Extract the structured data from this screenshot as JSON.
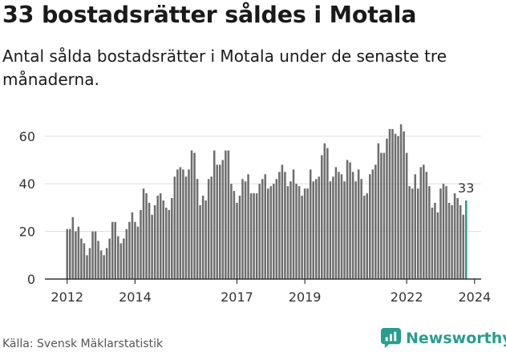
{
  "title": "33 bostadsrätter såldes i Motala",
  "subtitle": "Antal sålda bostadsrätter i Motala under de senaste tre månaderna.",
  "source": "Källa: Svensk Mäklarstatistik",
  "brand": "Newsworthy",
  "colors": {
    "bar": "#6e6e6e",
    "highlight": "#2a9d8f",
    "axis": "#333333",
    "text": "#333333"
  },
  "chart_data": {
    "type": "bar",
    "title": "33 bostadsrätter såldes i Motala",
    "xlabel": "",
    "ylabel": "",
    "ylim": [
      0,
      66
    ],
    "yticks": [
      0,
      20,
      40,
      60
    ],
    "xticks": [
      {
        "label": "2012",
        "index": 0
      },
      {
        "label": "2014",
        "index": 24
      },
      {
        "label": "2017",
        "index": 60
      },
      {
        "label": "2019",
        "index": 84
      },
      {
        "label": "2022",
        "index": 120
      },
      {
        "label": "2024",
        "index": 144
      }
    ],
    "start": "2012-01",
    "highlight_label": "33",
    "values": [
      21,
      21,
      26,
      20,
      22,
      17,
      15,
      10,
      13,
      20,
      20,
      16,
      12,
      10,
      13,
      17,
      24,
      24,
      18,
      15,
      17,
      21,
      24,
      28,
      24,
      22,
      29,
      38,
      36,
      32,
      27,
      31,
      35,
      36,
      33,
      30,
      29,
      34,
      43,
      46,
      47,
      46,
      43,
      46,
      54,
      53,
      42,
      31,
      35,
      33,
      42,
      43,
      54,
      48,
      48,
      50,
      54,
      54,
      40,
      37,
      32,
      35,
      42,
      41,
      44,
      36,
      36,
      36,
      40,
      42,
      44,
      38,
      39,
      40,
      42,
      45,
      48,
      45,
      39,
      41,
      46,
      40,
      39,
      35,
      38,
      38,
      46,
      41,
      42,
      43,
      52,
      57,
      55,
      41,
      43,
      47,
      45,
      44,
      41,
      50,
      49,
      45,
      41,
      46,
      42,
      35,
      36,
      44,
      46,
      48,
      57,
      53,
      53,
      59,
      63,
      63,
      61,
      60,
      65,
      62,
      53,
      39,
      38,
      44,
      38,
      47,
      48,
      45,
      39,
      30,
      32,
      28,
      38,
      40,
      39,
      32,
      31,
      36,
      34,
      31,
      27,
      33
    ]
  }
}
